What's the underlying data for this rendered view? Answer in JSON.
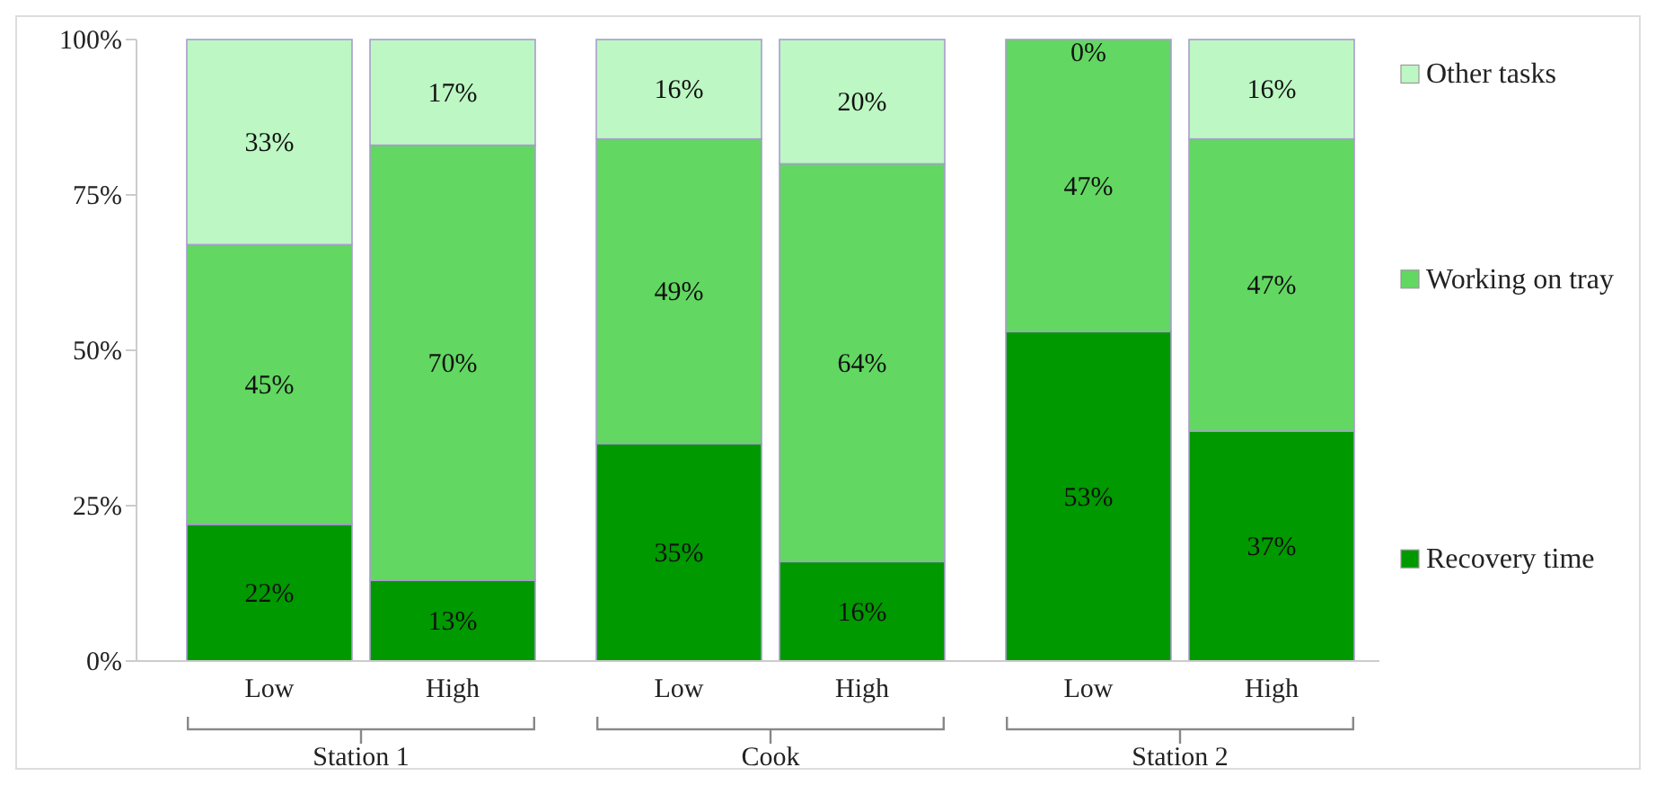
{
  "chart_data": {
    "type": "bar",
    "stacked": true,
    "categories": [
      "Low",
      "High",
      "Low",
      "High",
      "Low",
      "High"
    ],
    "ylim": [
      0,
      100
    ],
    "yticks": [
      {
        "value": 0,
        "label": "0%"
      },
      {
        "value": 25,
        "label": "25%"
      },
      {
        "value": 50,
        "label": "50%"
      },
      {
        "value": 75,
        "label": "75%"
      },
      {
        "value": 100,
        "label": "100%"
      }
    ],
    "grid": false,
    "legend": "right",
    "series": [
      {
        "name": "Recovery time",
        "color": "#009900",
        "values": [
          22,
          13,
          35,
          16,
          53,
          37
        ],
        "value_labels": [
          "22%",
          "13%",
          "35%",
          "16%",
          "53%",
          "37%"
        ]
      },
      {
        "name": "Working on tray",
        "color": "#62d762",
        "values": [
          45,
          70,
          49,
          64,
          47,
          47
        ],
        "value_labels": [
          "45%",
          "70%",
          "49%",
          "64%",
          "47%",
          "47%"
        ]
      },
      {
        "name": "Other tasks",
        "color": "#bdf7c3",
        "values": [
          33,
          17,
          16,
          20,
          0,
          16
        ],
        "value_labels": [
          "33%",
          "17%",
          "16%",
          "20%",
          "0%",
          "16%"
        ]
      }
    ],
    "annotations": [
      "Station 1",
      "Cook",
      "Station 2"
    ]
  }
}
